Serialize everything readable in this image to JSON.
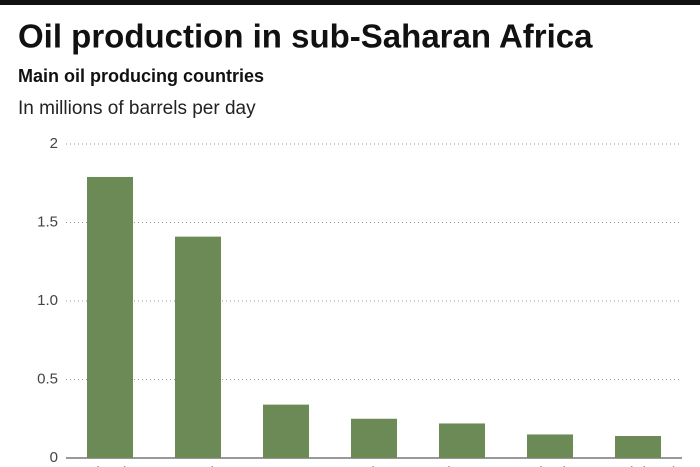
{
  "chart_data": {
    "type": "bar",
    "title": "Oil production in sub-Saharan Africa",
    "subtitle": "Main oil producing countries",
    "y_label": "In millions of barrels per day",
    "categories": [
      "Nigeria",
      "Angola",
      "Congo",
      "Gabon",
      "Ghana*",
      "Chad*",
      "Equatorial Guinea"
    ],
    "values": [
      1.79,
      1.41,
      0.34,
      0.25,
      0.22,
      0.15,
      0.14
    ],
    "color": "#6b8a55",
    "ylim": [
      0,
      2
    ],
    "yticks": [
      0,
      0.5,
      {
        "value": 1,
        "label": "1.0"
      },
      1.5,
      2
    ],
    "grid": true
  }
}
